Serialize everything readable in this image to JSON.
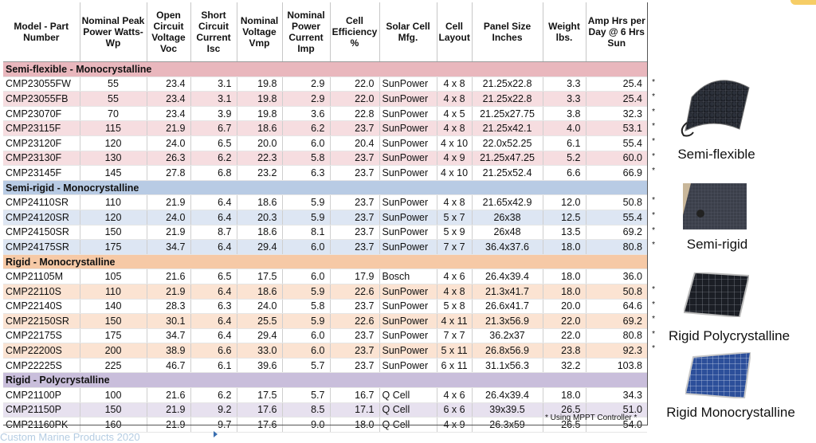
{
  "headers": {
    "model": "Model - Part Number",
    "peak": "Nominal Peak Power Watts-Wp",
    "voc": "Open Circuit Voltage Voc",
    "isc": "Short Circuit Current Isc",
    "vmp": "Nominal Voltage Vmp",
    "imp": "Nominal Power Current Imp",
    "eff": "Cell Efficiency %",
    "mfg": "Solar Cell Mfg.",
    "layout": "Cell Layout",
    "size": "Panel Size Inches",
    "weight": "Weight lbs.",
    "amp": "Amp Hrs per Day @ 6 Hrs Sun"
  },
  "sections": [
    {
      "title": "Semi-flexible - Monocrystalline",
      "rows": [
        [
          "CMP23055FW",
          "55",
          "23.4",
          "3.1",
          "19.8",
          "2.9",
          "22.0",
          "SunPower",
          "4 x 8",
          "21.25x22.8",
          "3.3",
          "25.4",
          "*"
        ],
        [
          "CMP23055FB",
          "55",
          "23.4",
          "3.1",
          "19.8",
          "2.9",
          "22.0",
          "SunPower",
          "4 x 8",
          "21.25x22.8",
          "3.3",
          "25.4",
          "*"
        ],
        [
          "CMP23070F",
          "70",
          "23.4",
          "3.9",
          "19.8",
          "3.6",
          "22.8",
          "SunPower",
          "4 x 5",
          "21.25x27.75",
          "3.8",
          "32.3",
          "*"
        ],
        [
          "CMP23115F",
          "115",
          "21.9",
          "6.7",
          "18.6",
          "6.2",
          "23.7",
          "SunPower",
          "4 x 8",
          "21.25x42.1",
          "4.0",
          "53.1",
          "*"
        ],
        [
          "CMP23120F",
          "120",
          "24.0",
          "6.5",
          "20.0",
          "6.0",
          "20.4",
          "SunPower",
          "4 x 10",
          "22.0x52.25",
          "6.1",
          "55.4",
          "*"
        ],
        [
          "CMP23130F",
          "130",
          "26.3",
          "6.2",
          "22.3",
          "5.8",
          "23.7",
          "SunPower",
          "4 x 9",
          "21.25x47.25",
          "5.2",
          "60.0",
          "*"
        ],
        [
          "CMP23145F",
          "145",
          "27.8",
          "6.8",
          "23.2",
          "6.3",
          "23.7",
          "SunPower",
          "4 x 10",
          "21.25x52.4",
          "6.6",
          "66.9",
          "*"
        ]
      ]
    },
    {
      "title": "Semi-rigid - Monocrystalline",
      "rows": [
        [
          "CMP24110SR",
          "110",
          "21.9",
          "6.4",
          "18.6",
          "5.9",
          "23.7",
          "SunPower",
          "4 x 8",
          "21.65x42.9",
          "12.0",
          "50.8",
          "*"
        ],
        [
          "CMP24120SR",
          "120",
          "24.0",
          "6.4",
          "20.3",
          "5.9",
          "23.7",
          "SunPower",
          "5 x 7",
          "26x38",
          "12.5",
          "55.4",
          "*"
        ],
        [
          "CMP24150SR",
          "150",
          "21.9",
          "8.7",
          "18.6",
          "8.1",
          "23.7",
          "SunPower",
          "5 x 9",
          "26x48",
          "13.5",
          "69.2",
          "*"
        ],
        [
          "CMP24175SR",
          "175",
          "34.7",
          "6.4",
          "29.4",
          "6.0",
          "23.7",
          "SunPower",
          "7 x 7",
          "36.4x37.6",
          "18.0",
          "80.8",
          "*"
        ]
      ]
    },
    {
      "title": "Rigid - Monocrystalline",
      "rows": [
        [
          "CMP21105M",
          "105",
          "21.6",
          "6.5",
          "17.5",
          "6.0",
          "17.9",
          "Bosch",
          "4 x 6",
          "26.4x39.4",
          "18.0",
          "36.0",
          ""
        ],
        [
          "CMP22110S",
          "110",
          "21.9",
          "6.4",
          "18.6",
          "5.9",
          "22.6",
          "SunPower",
          "4 x 8",
          "21.3x41.7",
          "18.0",
          "50.8",
          "*"
        ],
        [
          "CMP22140S",
          "140",
          "28.3",
          "6.3",
          "24.0",
          "5.8",
          "23.7",
          "SunPower",
          "5 x 8",
          "26.6x41.7",
          "20.0",
          "64.6",
          "*"
        ],
        [
          "CMP22150SR",
          "150",
          "30.1",
          "6.4",
          "25.5",
          "5.9",
          "22.6",
          "SunPower",
          "4 x 11",
          "21.3x56.9",
          "22.0",
          "69.2",
          "*"
        ],
        [
          "CMP22175S",
          "175",
          "34.7",
          "6.4",
          "29.4",
          "6.0",
          "23.7",
          "SunPower",
          "7 x 7",
          "36.2x37",
          "22.0",
          "80.8",
          "*"
        ],
        [
          "CMP22200S",
          "200",
          "38.9",
          "6.6",
          "33.0",
          "6.0",
          "23.7",
          "SunPower",
          "5 x 11",
          "26.8x56.9",
          "23.8",
          "92.3",
          "*"
        ],
        [
          "CMP22225S",
          "225",
          "46.7",
          "6.1",
          "39.6",
          "5.7",
          "23.7",
          "SunPower",
          "6 x 11",
          "31.1x56.3",
          "32.2",
          "103.8",
          ""
        ]
      ]
    },
    {
      "title": "Rigid - Polycrystalline",
      "rows": [
        [
          "CMP21100P",
          "100",
          "21.6",
          "6.2",
          "17.5",
          "5.7",
          "16.7",
          "Q Cell",
          "4 x 6",
          "26.4x39.4",
          "18.0",
          "34.3",
          ""
        ],
        [
          "CMP21150P",
          "150",
          "21.9",
          "9.2",
          "17.6",
          "8.5",
          "17.1",
          "Q Cell",
          "6 x 6",
          "39x39.5",
          "26.5",
          "51.0",
          ""
        ],
        [
          "CMP21160PK",
          "160",
          "21.9",
          "9.7",
          "17.6",
          "9.0",
          "18.0",
          "Q Cell",
          "4 x 9",
          "26.3x59",
          "26.5",
          "54.0",
          ""
        ]
      ]
    }
  ],
  "footnote": "* Using MPPT Controller  *",
  "side": {
    "semi_flexible": "Semi-flexible",
    "semi_rigid": "Semi-rigid",
    "rigid_poly": "Rigid Polycrystalline",
    "rigid_mono": "Rigid Monocrystalline"
  },
  "bottom_text": "Custom Marine Products 2020"
}
